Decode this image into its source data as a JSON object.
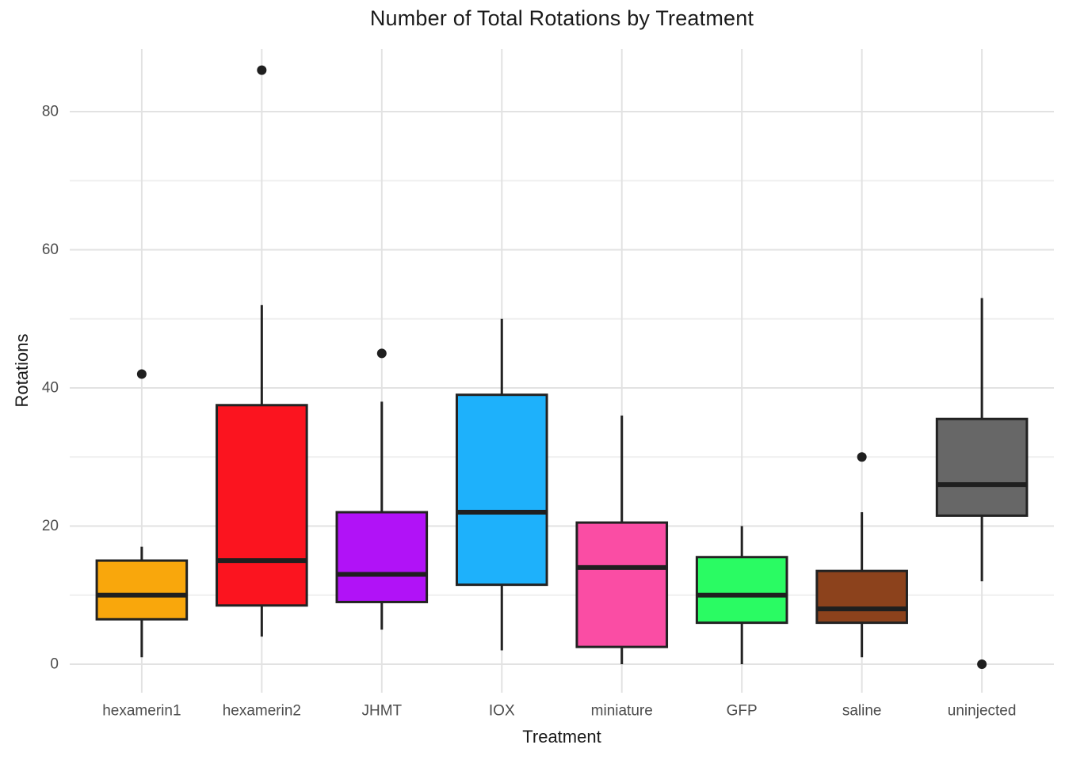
{
  "chart_data": {
    "type": "boxplot",
    "title": "Number of Total Rotations by Treatment",
    "xlabel": "Treatment",
    "ylabel": "Rotations",
    "categories": [
      "hexamerin1",
      "hexamerin2",
      "JHMT",
      "IOX",
      "miniature",
      "GFP",
      "saline",
      "uninjected"
    ],
    "series": [
      {
        "label": "hexamerin1",
        "color": "#F9A70C",
        "whisker_low": 1,
        "q1": 6.5,
        "median": 10,
        "q3": 15,
        "whisker_high": 17,
        "outliers": [
          42
        ]
      },
      {
        "label": "hexamerin2",
        "color": "#FB141F",
        "whisker_low": 4,
        "q1": 8.5,
        "median": 15,
        "q3": 37.5,
        "whisker_high": 52,
        "outliers": [
          86
        ]
      },
      {
        "label": "JHMT",
        "color": "#B112F7",
        "whisker_low": 5,
        "q1": 9,
        "median": 13,
        "q3": 22,
        "whisker_high": 38,
        "outliers": [
          45
        ]
      },
      {
        "label": "IOX",
        "color": "#1EB1FB",
        "whisker_low": 2,
        "q1": 11.5,
        "median": 22,
        "q3": 39,
        "whisker_high": 50,
        "outliers": []
      },
      {
        "label": "miniature",
        "color": "#FA4DA4",
        "whisker_low": 0,
        "q1": 2.5,
        "median": 14,
        "q3": 20.5,
        "whisker_high": 36,
        "outliers": []
      },
      {
        "label": "GFP",
        "color": "#2AFB63",
        "whisker_low": 0,
        "q1": 6,
        "median": 10,
        "q3": 15.5,
        "whisker_high": 20,
        "outliers": []
      },
      {
        "label": "saline",
        "color": "#8C421C",
        "whisker_low": 1,
        "q1": 6,
        "median": 8,
        "q3": 13.5,
        "whisker_high": 22,
        "outliers": [
          30
        ]
      },
      {
        "label": "uninjected",
        "color": "#676767",
        "whisker_low": 12,
        "q1": 21.5,
        "median": 26,
        "q3": 35.5,
        "whisker_high": 53,
        "outliers": [
          0
        ]
      }
    ],
    "y_ticks": [
      0,
      20,
      40,
      60,
      80
    ],
    "y_minor_ticks": [
      10,
      30,
      50,
      70
    ],
    "ylim": [
      -4.13,
      89.05
    ],
    "grid": "horizontal major+minor, vertical at each category",
    "legend": "none",
    "style": {
      "grid_major_color": "#E2E2E2",
      "grid_minor_color": "#EFEFEF",
      "box_stroke_color": "#222222",
      "median_color": "#1F1F1F",
      "outlier_color": "#1F1F1F",
      "tick_label_color": "#4D4D4D",
      "text_color": "#1a1a1a",
      "background_color": "#FFFFFF"
    }
  }
}
